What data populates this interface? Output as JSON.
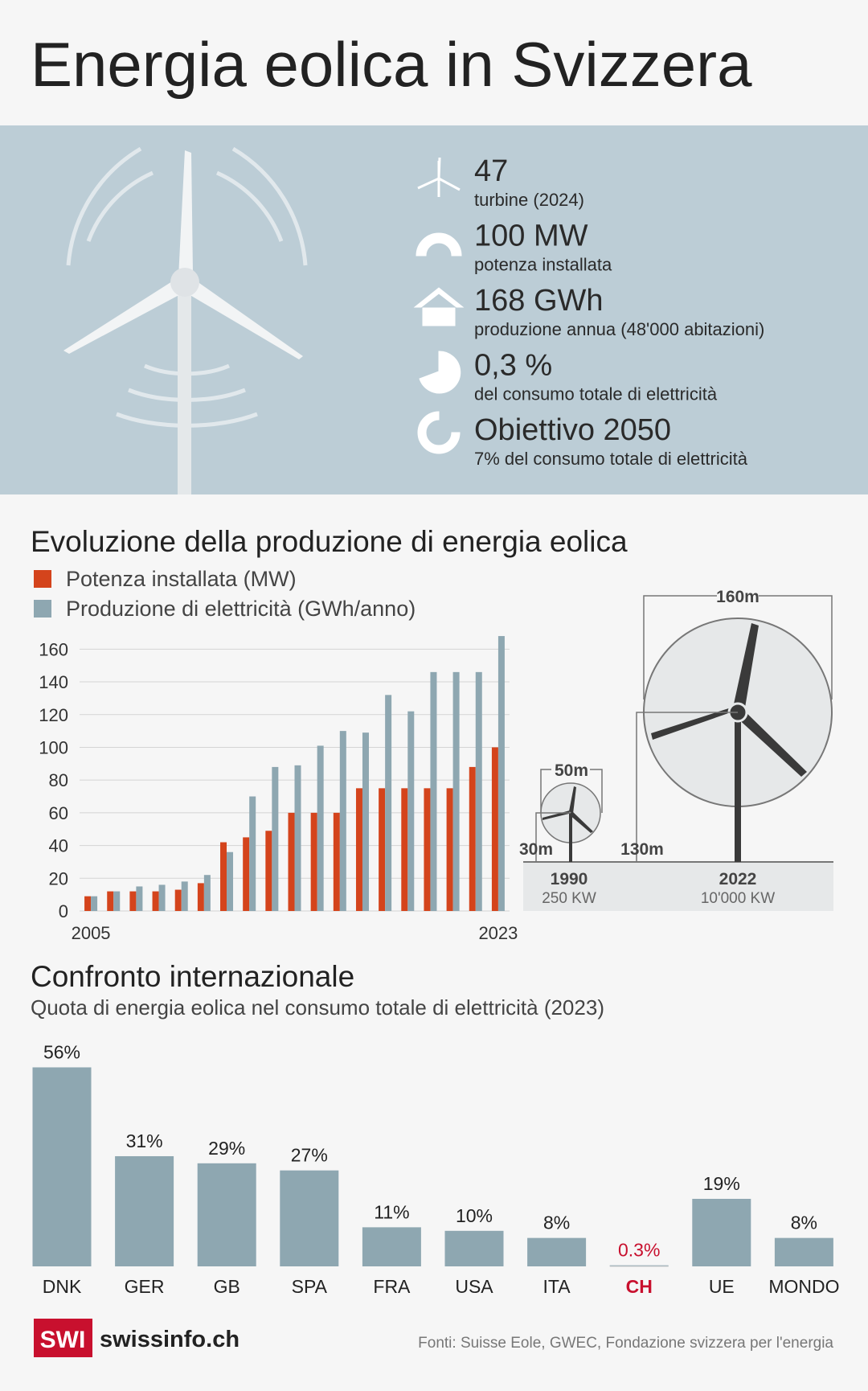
{
  "title": "Energia eolica in Svizzera",
  "stats": [
    {
      "value": "47",
      "label": "turbine (2024)"
    },
    {
      "value": "100 MW",
      "label": "potenza installata"
    },
    {
      "value": "168 GWh",
      "label": "produzione annua (48'000 abitazioni)"
    },
    {
      "value": "0,3 %",
      "label": "del consumo totale di elettricità"
    },
    {
      "value": "Obiettivo 2050",
      "label": "7% del consumo totale di elettricità"
    }
  ],
  "chart_data": [
    {
      "type": "grouped_bar",
      "title": "Evoluzione della produzione di energia eolica",
      "categories": [
        "2005",
        null,
        null,
        null,
        null,
        null,
        null,
        null,
        null,
        null,
        null,
        null,
        null,
        null,
        null,
        null,
        null,
        null,
        "2023"
      ],
      "series": [
        {
          "name": "Potenza installata (MW)",
          "color": "#d4441c",
          "values": [
            9,
            12,
            12,
            12,
            13,
            17,
            42,
            45,
            49,
            60,
            60,
            60,
            75,
            75,
            75,
            75,
            75,
            88,
            100
          ]
        },
        {
          "name": "Produzione di elettricità (GWh/anno)",
          "color": "#8ea7b1",
          "values": [
            9,
            12,
            15,
            16,
            18,
            22,
            36,
            70,
            88,
            89,
            101,
            110,
            109,
            132,
            122,
            146,
            146,
            146,
            168
          ]
        }
      ],
      "ylim": [
        0,
        170
      ],
      "yticks": [
        0,
        20,
        40,
        60,
        80,
        100,
        120,
        140,
        160
      ],
      "grid": true
    },
    {
      "type": "bar",
      "title": "Confronto internazionale",
      "subtitle": "Quota di energia eolica nel consumo totale di elettricità (2023)",
      "categories": [
        "DNK",
        "GER",
        "GB",
        "SPA",
        "FRA",
        "USA",
        "ITA",
        "CH",
        "UE",
        "MONDO"
      ],
      "values": [
        56,
        31,
        29,
        27,
        11,
        10,
        8,
        0.3,
        19,
        8
      ],
      "value_labels": [
        "56%",
        "31%",
        "29%",
        "27%",
        "11%",
        "10%",
        "8%",
        "0.3%",
        "19%",
        "8%"
      ],
      "color": "#8ea7b1",
      "highlight": 7,
      "highlight_color": "#c8102e"
    }
  ],
  "turbine_comparison": [
    {
      "year": "1990",
      "power": "250 KW",
      "diameter": "50m",
      "hub_height": "30m"
    },
    {
      "year": "2022",
      "power": "10'000 KW",
      "diameter": "160m",
      "hub_height": "130m"
    }
  ],
  "footer": {
    "logo": "SWI",
    "brand": "swissinfo.ch",
    "source": "Fonti: Suisse Eole, GWEC, Fondazione svizzera per l'energia"
  }
}
